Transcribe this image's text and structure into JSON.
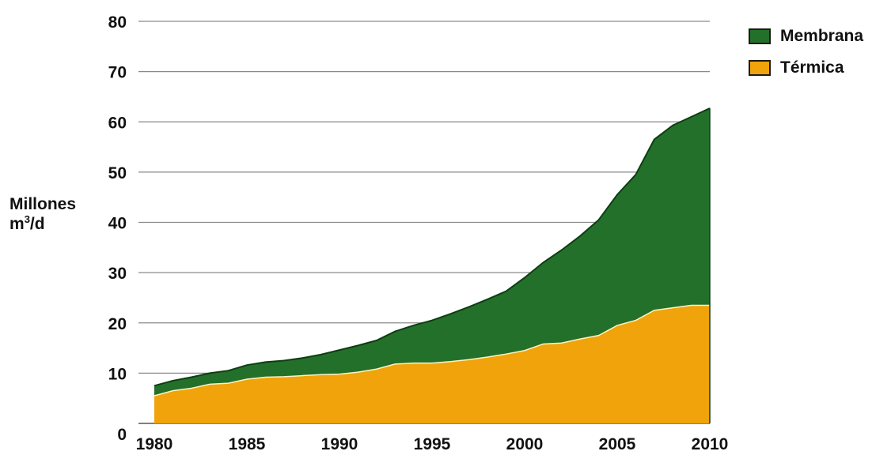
{
  "chart_data": {
    "type": "area",
    "stacked": true,
    "title": "",
    "xlabel": "",
    "ylabel": {
      "prefix": "Millones",
      "line2_base": "m",
      "line2_sup": "3",
      "line2_suffix": "/d"
    },
    "xlim": [
      1980,
      2010
    ],
    "ylim": [
      0,
      80
    ],
    "x_ticks": [
      1980,
      1985,
      1990,
      1995,
      2000,
      2005,
      2010
    ],
    "y_ticks": [
      0,
      10,
      20,
      30,
      40,
      50,
      60,
      70,
      80
    ],
    "grid": "horizontal",
    "legend_position": "top-right",
    "x": [
      1980,
      1981,
      1982,
      1983,
      1984,
      1985,
      1986,
      1987,
      1988,
      1989,
      1990,
      1991,
      1992,
      1993,
      1994,
      1995,
      1996,
      1997,
      1998,
      1999,
      2000,
      2001,
      2002,
      2003,
      2004,
      2005,
      2006,
      2007,
      2008,
      2009,
      2010
    ],
    "series": [
      {
        "name": "Térmica",
        "color": "#f0a30a",
        "values": [
          5.5,
          6.5,
          7,
          7.8,
          8,
          8.8,
          9.2,
          9.3,
          9.5,
          9.7,
          9.8,
          10.2,
          10.8,
          11.8,
          12,
          12,
          12.3,
          12.7,
          13.2,
          13.8,
          14.5,
          15.8,
          16,
          16.8,
          17.5,
          19.5,
          20.5,
          22.5,
          23,
          23.5,
          23.5
        ]
      },
      {
        "name": "Membrana",
        "color": "#23702a",
        "values": [
          2,
          2,
          2.2,
          2.2,
          2.5,
          2.8,
          3,
          3.2,
          3.5,
          4,
          4.8,
          5.3,
          5.7,
          6.5,
          7.5,
          8.5,
          9.5,
          10.5,
          11.5,
          12.5,
          14.5,
          16.2,
          18.5,
          20.5,
          23,
          26,
          29,
          34,
          36.3,
          37.5,
          39.2
        ]
      }
    ]
  }
}
